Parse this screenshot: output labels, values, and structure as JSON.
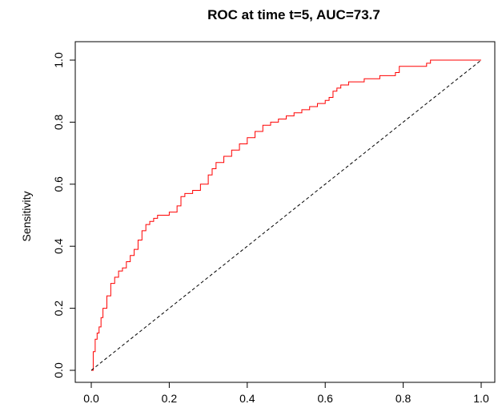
{
  "chart_data": {
    "type": "line",
    "title": "ROC at time t=5, AUC=73.7",
    "xlabel": "",
    "ylabel": "Sensitivity",
    "xlim": [
      0,
      1
    ],
    "ylim": [
      0,
      1
    ],
    "xticks": [
      0.0,
      0.2,
      0.4,
      0.6,
      0.8,
      1.0
    ],
    "xtick_labels": [
      "0.0",
      "0.2",
      "0.4",
      "0.6",
      "0.8",
      "1.0"
    ],
    "yticks": [
      0.0,
      0.2,
      0.4,
      0.6,
      0.8,
      1.0
    ],
    "ytick_labels": [
      "0.0",
      "0.2",
      "0.4",
      "0.6",
      "0.8",
      "1.0"
    ],
    "grid": false,
    "legend": "none",
    "series": [
      {
        "color": "#ff0000",
        "style": "step",
        "x": [
          0.0,
          0.005,
          0.01,
          0.015,
          0.02,
          0.025,
          0.03,
          0.04,
          0.05,
          0.06,
          0.07,
          0.08,
          0.09,
          0.1,
          0.11,
          0.12,
          0.13,
          0.14,
          0.15,
          0.16,
          0.17,
          0.18,
          0.2,
          0.22,
          0.23,
          0.24,
          0.26,
          0.28,
          0.3,
          0.31,
          0.32,
          0.34,
          0.36,
          0.38,
          0.4,
          0.42,
          0.44,
          0.46,
          0.48,
          0.5,
          0.52,
          0.54,
          0.56,
          0.58,
          0.6,
          0.61,
          0.62,
          0.63,
          0.64,
          0.66,
          0.7,
          0.74,
          0.78,
          0.79,
          0.82,
          0.86,
          0.87,
          0.9,
          0.95,
          1.0
        ],
        "y": [
          0.0,
          0.06,
          0.1,
          0.12,
          0.14,
          0.17,
          0.2,
          0.24,
          0.28,
          0.3,
          0.32,
          0.33,
          0.35,
          0.37,
          0.39,
          0.42,
          0.45,
          0.47,
          0.48,
          0.49,
          0.5,
          0.5,
          0.51,
          0.53,
          0.56,
          0.57,
          0.58,
          0.6,
          0.63,
          0.65,
          0.67,
          0.69,
          0.71,
          0.73,
          0.75,
          0.77,
          0.79,
          0.8,
          0.81,
          0.82,
          0.83,
          0.84,
          0.85,
          0.86,
          0.87,
          0.88,
          0.9,
          0.91,
          0.92,
          0.93,
          0.94,
          0.95,
          0.96,
          0.98,
          0.98,
          0.99,
          1.0,
          1.0,
          1.0,
          1.0
        ]
      },
      {
        "color": "#000000",
        "style": "dashed",
        "x": [
          0,
          1
        ],
        "y": [
          0,
          1
        ]
      }
    ]
  }
}
